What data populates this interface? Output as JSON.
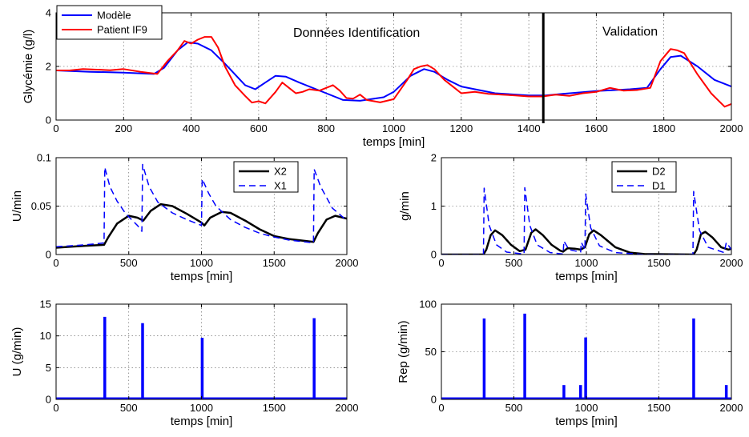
{
  "chart_data": [
    {
      "id": "glycemia",
      "type": "line",
      "xlabel": "temps [min]",
      "ylabel": "Glycémie (g/l)",
      "xlim": [
        0,
        2000
      ],
      "ylim": [
        0,
        4
      ],
      "xticks": [
        0,
        200,
        400,
        600,
        800,
        1000,
        1200,
        1400,
        1600,
        1800,
        2000
      ],
      "yticks": [
        0,
        2,
        4
      ],
      "grid": true,
      "legend": "top-left",
      "annotations": [
        {
          "text": "Données Identification",
          "x": 890,
          "y": 3.1
        },
        {
          "text": "Validation",
          "x": 1700,
          "y": 3.15
        }
      ],
      "vline": {
        "x": 1443,
        "y": [
          0,
          4
        ]
      },
      "series": [
        {
          "name": "Modèle",
          "color": "#0000ff",
          "width": 2,
          "dash": "",
          "points": [
            [
              0,
              1.85
            ],
            [
              100,
              1.8
            ],
            [
              200,
              1.77
            ],
            [
              290,
              1.72
            ],
            [
              320,
              1.95
            ],
            [
              360,
              2.6
            ],
            [
              390,
              2.9
            ],
            [
              420,
              2.85
            ],
            [
              460,
              2.6
            ],
            [
              500,
              2.1
            ],
            [
              560,
              1.3
            ],
            [
              590,
              1.15
            ],
            [
              620,
              1.4
            ],
            [
              650,
              1.65
            ],
            [
              680,
              1.62
            ],
            [
              720,
              1.4
            ],
            [
              800,
              1.0
            ],
            [
              850,
              0.75
            ],
            [
              900,
              0.72
            ],
            [
              970,
              0.85
            ],
            [
              1000,
              1.05
            ],
            [
              1050,
              1.65
            ],
            [
              1090,
              1.9
            ],
            [
              1120,
              1.8
            ],
            [
              1160,
              1.5
            ],
            [
              1200,
              1.25
            ],
            [
              1300,
              1.0
            ],
            [
              1400,
              0.92
            ],
            [
              1450,
              0.92
            ],
            [
              1500,
              0.98
            ],
            [
              1600,
              1.08
            ],
            [
              1700,
              1.15
            ],
            [
              1750,
              1.2
            ],
            [
              1790,
              1.9
            ],
            [
              1820,
              2.35
            ],
            [
              1850,
              2.4
            ],
            [
              1900,
              2.0
            ],
            [
              1950,
              1.5
            ],
            [
              2000,
              1.25
            ]
          ]
        },
        {
          "name": "Patient IF9",
          "color": "#ff0000",
          "width": 2,
          "dash": "",
          "points": [
            [
              0,
              1.85
            ],
            [
              40,
              1.85
            ],
            [
              80,
              1.9
            ],
            [
              120,
              1.88
            ],
            [
              160,
              1.86
            ],
            [
              200,
              1.9
            ],
            [
              250,
              1.8
            ],
            [
              300,
              1.72
            ],
            [
              330,
              2.2
            ],
            [
              360,
              2.6
            ],
            [
              380,
              2.95
            ],
            [
              400,
              2.85
            ],
            [
              420,
              3.0
            ],
            [
              440,
              3.1
            ],
            [
              460,
              3.1
            ],
            [
              480,
              2.7
            ],
            [
              500,
              2.0
            ],
            [
              530,
              1.3
            ],
            [
              560,
              0.9
            ],
            [
              580,
              0.65
            ],
            [
              600,
              0.7
            ],
            [
              620,
              0.62
            ],
            [
              650,
              1.05
            ],
            [
              670,
              1.4
            ],
            [
              690,
              1.2
            ],
            [
              710,
              1.0
            ],
            [
              730,
              1.05
            ],
            [
              750,
              1.15
            ],
            [
              780,
              1.1
            ],
            [
              800,
              1.2
            ],
            [
              820,
              1.3
            ],
            [
              840,
              1.1
            ],
            [
              860,
              0.82
            ],
            [
              880,
              0.8
            ],
            [
              900,
              0.95
            ],
            [
              920,
              0.75
            ],
            [
              960,
              0.66
            ],
            [
              1000,
              0.78
            ],
            [
              1040,
              1.5
            ],
            [
              1060,
              1.9
            ],
            [
              1080,
              2.0
            ],
            [
              1100,
              2.05
            ],
            [
              1120,
              1.9
            ],
            [
              1150,
              1.5
            ],
            [
              1180,
              1.2
            ],
            [
              1200,
              1.0
            ],
            [
              1240,
              1.05
            ],
            [
              1280,
              0.98
            ],
            [
              1320,
              0.95
            ],
            [
              1360,
              0.92
            ],
            [
              1400,
              0.88
            ],
            [
              1440,
              0.88
            ],
            [
              1480,
              0.95
            ],
            [
              1520,
              0.9
            ],
            [
              1560,
              1.0
            ],
            [
              1600,
              1.05
            ],
            [
              1640,
              1.2
            ],
            [
              1680,
              1.1
            ],
            [
              1720,
              1.12
            ],
            [
              1760,
              1.2
            ],
            [
              1790,
              2.2
            ],
            [
              1810,
              2.5
            ],
            [
              1820,
              2.65
            ],
            [
              1840,
              2.6
            ],
            [
              1860,
              2.5
            ],
            [
              1900,
              1.7
            ],
            [
              1940,
              1.0
            ],
            [
              1960,
              0.75
            ],
            [
              1980,
              0.5
            ],
            [
              2000,
              0.6
            ]
          ]
        }
      ]
    },
    {
      "id": "insulin-compartments",
      "type": "line",
      "xlabel": "temps [min]",
      "ylabel": "U/min",
      "xlim": [
        0,
        2000
      ],
      "ylim": [
        0,
        0.1
      ],
      "xticks": [
        0,
        500,
        1000,
        1500,
        2000
      ],
      "yticks": [
        0,
        0.05,
        0.1
      ],
      "ytick_labels": [
        "0",
        "0.05",
        "0.1"
      ],
      "grid": true,
      "legend": "top-right",
      "series": [
        {
          "name": "X2",
          "color": "#000000",
          "width": 2.5,
          "dash": "",
          "points": [
            [
              0,
              0.007
            ],
            [
              100,
              0.008
            ],
            [
              200,
              0.009
            ],
            [
              330,
              0.01
            ],
            [
              360,
              0.018
            ],
            [
              420,
              0.032
            ],
            [
              500,
              0.04
            ],
            [
              560,
              0.038
            ],
            [
              600,
              0.035
            ],
            [
              650,
              0.045
            ],
            [
              720,
              0.052
            ],
            [
              800,
              0.05
            ],
            [
              900,
              0.042
            ],
            [
              1000,
              0.033
            ],
            [
              1020,
              0.03
            ],
            [
              1060,
              0.038
            ],
            [
              1140,
              0.044
            ],
            [
              1200,
              0.043
            ],
            [
              1300,
              0.035
            ],
            [
              1400,
              0.026
            ],
            [
              1500,
              0.019
            ],
            [
              1600,
              0.016
            ],
            [
              1770,
              0.013
            ],
            [
              1800,
              0.022
            ],
            [
              1860,
              0.036
            ],
            [
              1920,
              0.04
            ],
            [
              2000,
              0.037
            ]
          ]
        },
        {
          "name": "X1",
          "color": "#0000ff",
          "width": 1.5,
          "dash": "8 5",
          "points": [
            [
              0,
              0.008
            ],
            [
              200,
              0.01
            ],
            [
              330,
              0.012
            ],
            [
              335,
              0.09
            ],
            [
              370,
              0.07
            ],
            [
              420,
              0.055
            ],
            [
              480,
              0.042
            ],
            [
              560,
              0.03
            ],
            [
              590,
              0.024
            ],
            [
              595,
              0.093
            ],
            [
              640,
              0.07
            ],
            [
              700,
              0.054
            ],
            [
              800,
              0.043
            ],
            [
              900,
              0.036
            ],
            [
              1000,
              0.03
            ],
            [
              1005,
              0.078
            ],
            [
              1050,
              0.063
            ],
            [
              1100,
              0.05
            ],
            [
              1200,
              0.036
            ],
            [
              1300,
              0.028
            ],
            [
              1400,
              0.022
            ],
            [
              1500,
              0.018
            ],
            [
              1600,
              0.015
            ],
            [
              1770,
              0.012
            ],
            [
              1775,
              0.088
            ],
            [
              1820,
              0.07
            ],
            [
              1900,
              0.048
            ],
            [
              2000,
              0.035
            ]
          ]
        }
      ]
    },
    {
      "id": "meal-compartments",
      "type": "line",
      "xlabel": "temps [min]",
      "ylabel": "g/min",
      "xlim": [
        0,
        2000
      ],
      "ylim": [
        0,
        2
      ],
      "xticks": [
        0,
        500,
        1000,
        1500,
        2000
      ],
      "yticks": [
        0,
        1,
        2
      ],
      "grid": true,
      "legend": "top-right",
      "series": [
        {
          "name": "D2",
          "color": "#000000",
          "width": 2.5,
          "dash": "",
          "points": [
            [
              0,
              0
            ],
            [
              290,
              0
            ],
            [
              310,
              0.1
            ],
            [
              340,
              0.4
            ],
            [
              370,
              0.5
            ],
            [
              420,
              0.4
            ],
            [
              480,
              0.2
            ],
            [
              540,
              0.07
            ],
            [
              580,
              0.1
            ],
            [
              620,
              0.45
            ],
            [
              650,
              0.52
            ],
            [
              700,
              0.4
            ],
            [
              760,
              0.2
            ],
            [
              820,
              0.08
            ],
            [
              840,
              0.06
            ],
            [
              870,
              0.13
            ],
            [
              920,
              0.12
            ],
            [
              960,
              0.1
            ],
            [
              990,
              0.15
            ],
            [
              1020,
              0.42
            ],
            [
              1050,
              0.5
            ],
            [
              1100,
              0.4
            ],
            [
              1200,
              0.15
            ],
            [
              1300,
              0.04
            ],
            [
              1400,
              0.01
            ],
            [
              1740,
              0
            ],
            [
              1760,
              0.1
            ],
            [
              1790,
              0.42
            ],
            [
              1820,
              0.47
            ],
            [
              1870,
              0.35
            ],
            [
              1930,
              0.15
            ],
            [
              1980,
              0.1
            ],
            [
              2000,
              0.12
            ]
          ]
        },
        {
          "name": "D1",
          "color": "#0000ff",
          "width": 1.5,
          "dash": "8 5",
          "points": [
            [
              0,
              0
            ],
            [
              290,
              0
            ],
            [
              295,
              1.37
            ],
            [
              330,
              0.6
            ],
            [
              380,
              0.2
            ],
            [
              450,
              0.05
            ],
            [
              570,
              0.01
            ],
            [
              575,
              1.38
            ],
            [
              610,
              0.6
            ],
            [
              660,
              0.2
            ],
            [
              750,
              0.04
            ],
            [
              840,
              0.01
            ],
            [
              845,
              0.28
            ],
            [
              880,
              0.1
            ],
            [
              960,
              0.05
            ],
            [
              965,
              0.25
            ],
            [
              990,
              0.1
            ],
            [
              995,
              1.25
            ],
            [
              1030,
              0.55
            ],
            [
              1090,
              0.18
            ],
            [
              1200,
              0.04
            ],
            [
              1400,
              0
            ],
            [
              1735,
              0
            ],
            [
              1740,
              1.3
            ],
            [
              1780,
              0.5
            ],
            [
              1840,
              0.15
            ],
            [
              1950,
              0.04
            ],
            [
              1965,
              0.25
            ],
            [
              2000,
              0.1
            ]
          ]
        }
      ]
    },
    {
      "id": "insulin-boluses",
      "type": "bar",
      "xlabel": "temps [min]",
      "ylabel": "U (g/min)",
      "xlim": [
        0,
        2000
      ],
      "ylim": [
        0,
        15
      ],
      "xticks": [
        0,
        500,
        1000,
        1500,
        2000
      ],
      "yticks": [
        0,
        5,
        10,
        15
      ],
      "grid": true,
      "color": "#0000ff",
      "baseline": 0.15,
      "x": [
        335,
        595,
        1005,
        1775
      ],
      "values": [
        13,
        12,
        9.7,
        12.8
      ]
    },
    {
      "id": "meals",
      "type": "bar",
      "xlabel": "temps [min]",
      "ylabel": "Rep (g/min)",
      "xlim": [
        0,
        2000
      ],
      "ylim": [
        0,
        100
      ],
      "xticks": [
        0,
        500,
        1000,
        1500,
        2000
      ],
      "yticks": [
        0,
        50,
        100
      ],
      "grid": true,
      "color": "#0000ff",
      "baseline": 1,
      "x": [
        295,
        575,
        845,
        960,
        995,
        1740,
        1965
      ],
      "values": [
        85,
        90,
        15,
        15,
        65,
        85,
        15
      ]
    }
  ]
}
